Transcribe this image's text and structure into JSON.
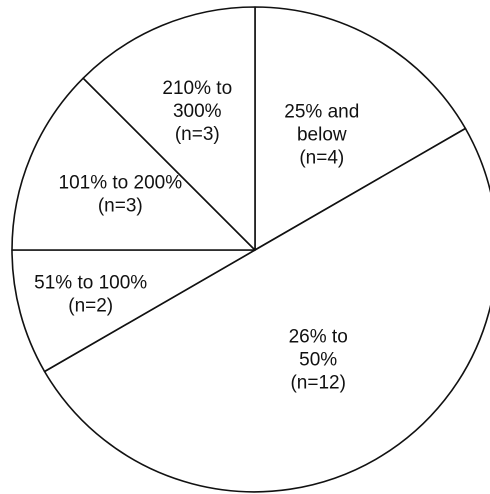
{
  "chart_data": {
    "type": "pie",
    "title": "",
    "slices": [
      {
        "label": [
          "25% and",
          "below",
          "(n=4)"
        ],
        "value": 4
      },
      {
        "label": [
          "26% to",
          "50%",
          "(n=12)"
        ],
        "value": 12
      },
      {
        "label": [
          "51% to 100%",
          "(n=2)"
        ],
        "value": 2
      },
      {
        "label": [
          "101% to 200%",
          "(n=3)"
        ],
        "value": 3
      },
      {
        "label": [
          "210% to",
          "300%",
          "(n=3)"
        ],
        "value": 3
      }
    ],
    "colors": {
      "fill": "#ffffff",
      "stroke": "#111111",
      "text": "#111111"
    }
  }
}
